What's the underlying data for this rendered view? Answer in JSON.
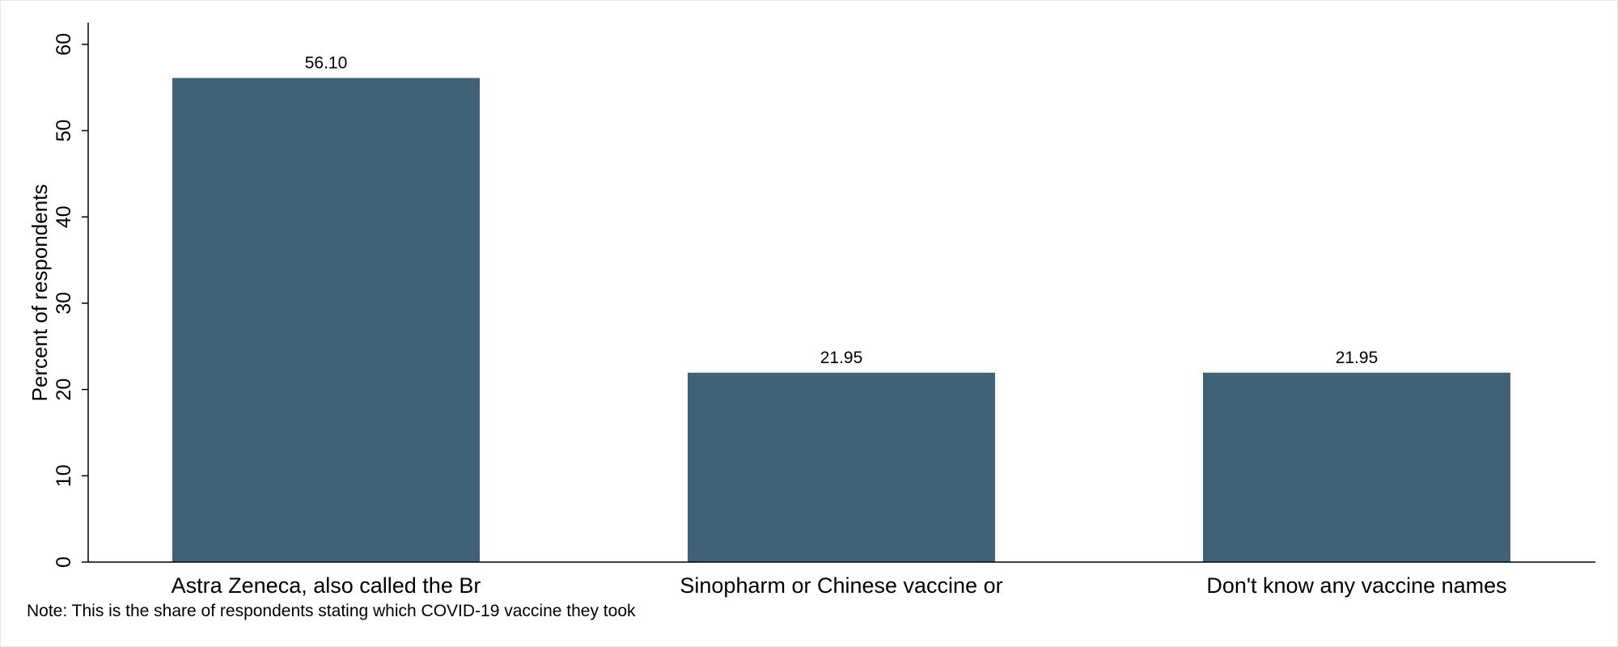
{
  "chart_data": {
    "type": "bar",
    "title": "",
    "xlabel": "",
    "ylabel": "Percent of respondents",
    "categories": [
      "Astra Zeneca, also called the Br",
      "Sinopharm or Chinese vaccine or",
      "Don't know any vaccine names"
    ],
    "values": [
      56.1,
      21.95,
      21.95
    ],
    "data_labels": [
      "56.10",
      "21.95",
      "21.95"
    ],
    "ylim": [
      0,
      62
    ],
    "yticks": [
      0,
      10,
      20,
      30,
      40,
      50,
      60
    ],
    "grid": false,
    "legend": "none",
    "bar_color": "#3f6279",
    "note": "Note: This is the share of respondents stating which COVID-19 vaccine they took"
  }
}
